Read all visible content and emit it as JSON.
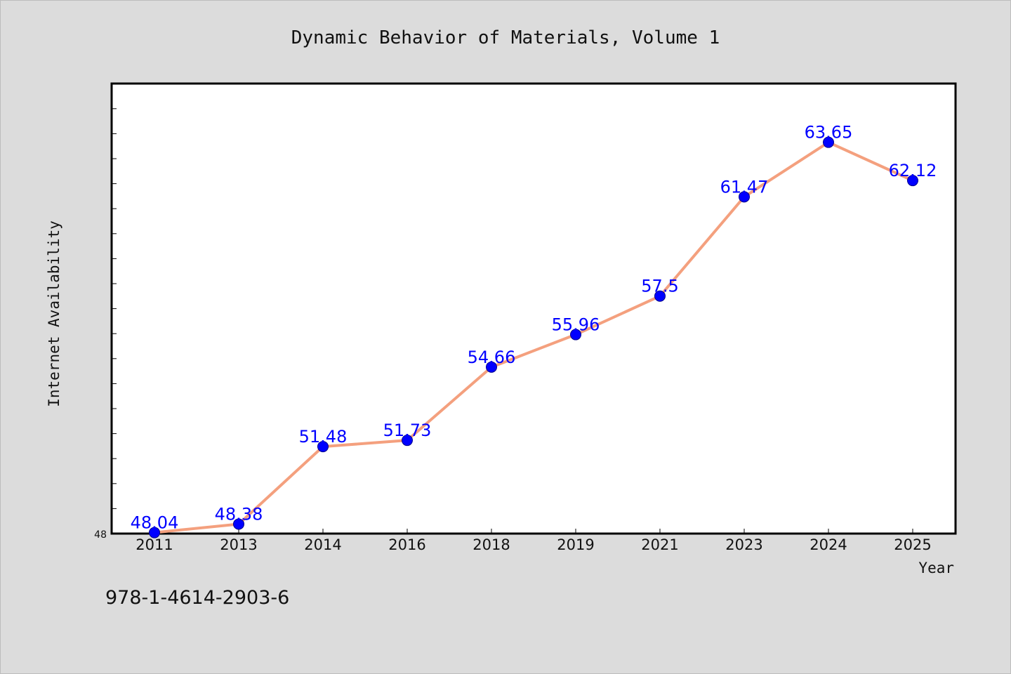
{
  "footer": {
    "isbn": "978-1-4614-2903-6"
  },
  "chart_data": {
    "type": "line",
    "title": "Dynamic Behavior of Materials, Volume 1",
    "xlabel": "Year",
    "ylabel": "Internet Availability",
    "categories": [
      "2011",
      "2013",
      "2014",
      "2016",
      "2018",
      "2019",
      "2021",
      "2023",
      "2024",
      "2025"
    ],
    "series": [
      {
        "values": [
          48.04,
          48.38,
          51.48,
          51.73,
          54.66,
          55.96,
          57.5,
          61.47,
          63.65,
          62.12
        ],
        "labels": [
          "48.04",
          "48.38",
          "51.48",
          "51.73",
          "54.66",
          "55.96",
          "57.5",
          "61.47",
          "63.65",
          "62.12"
        ],
        "line_color": "#f4a07e",
        "marker_color": "#0000ff"
      }
    ],
    "ylim": [
      48,
      66
    ],
    "yticks_labeled": [
      "48"
    ],
    "grid": false,
    "legend": "none",
    "colors": {
      "background": "#dcdcdc",
      "plot_area": "#ffffff",
      "line": "#f4a07e",
      "marker": "#0000ff",
      "data_label": "#0000ff"
    }
  }
}
